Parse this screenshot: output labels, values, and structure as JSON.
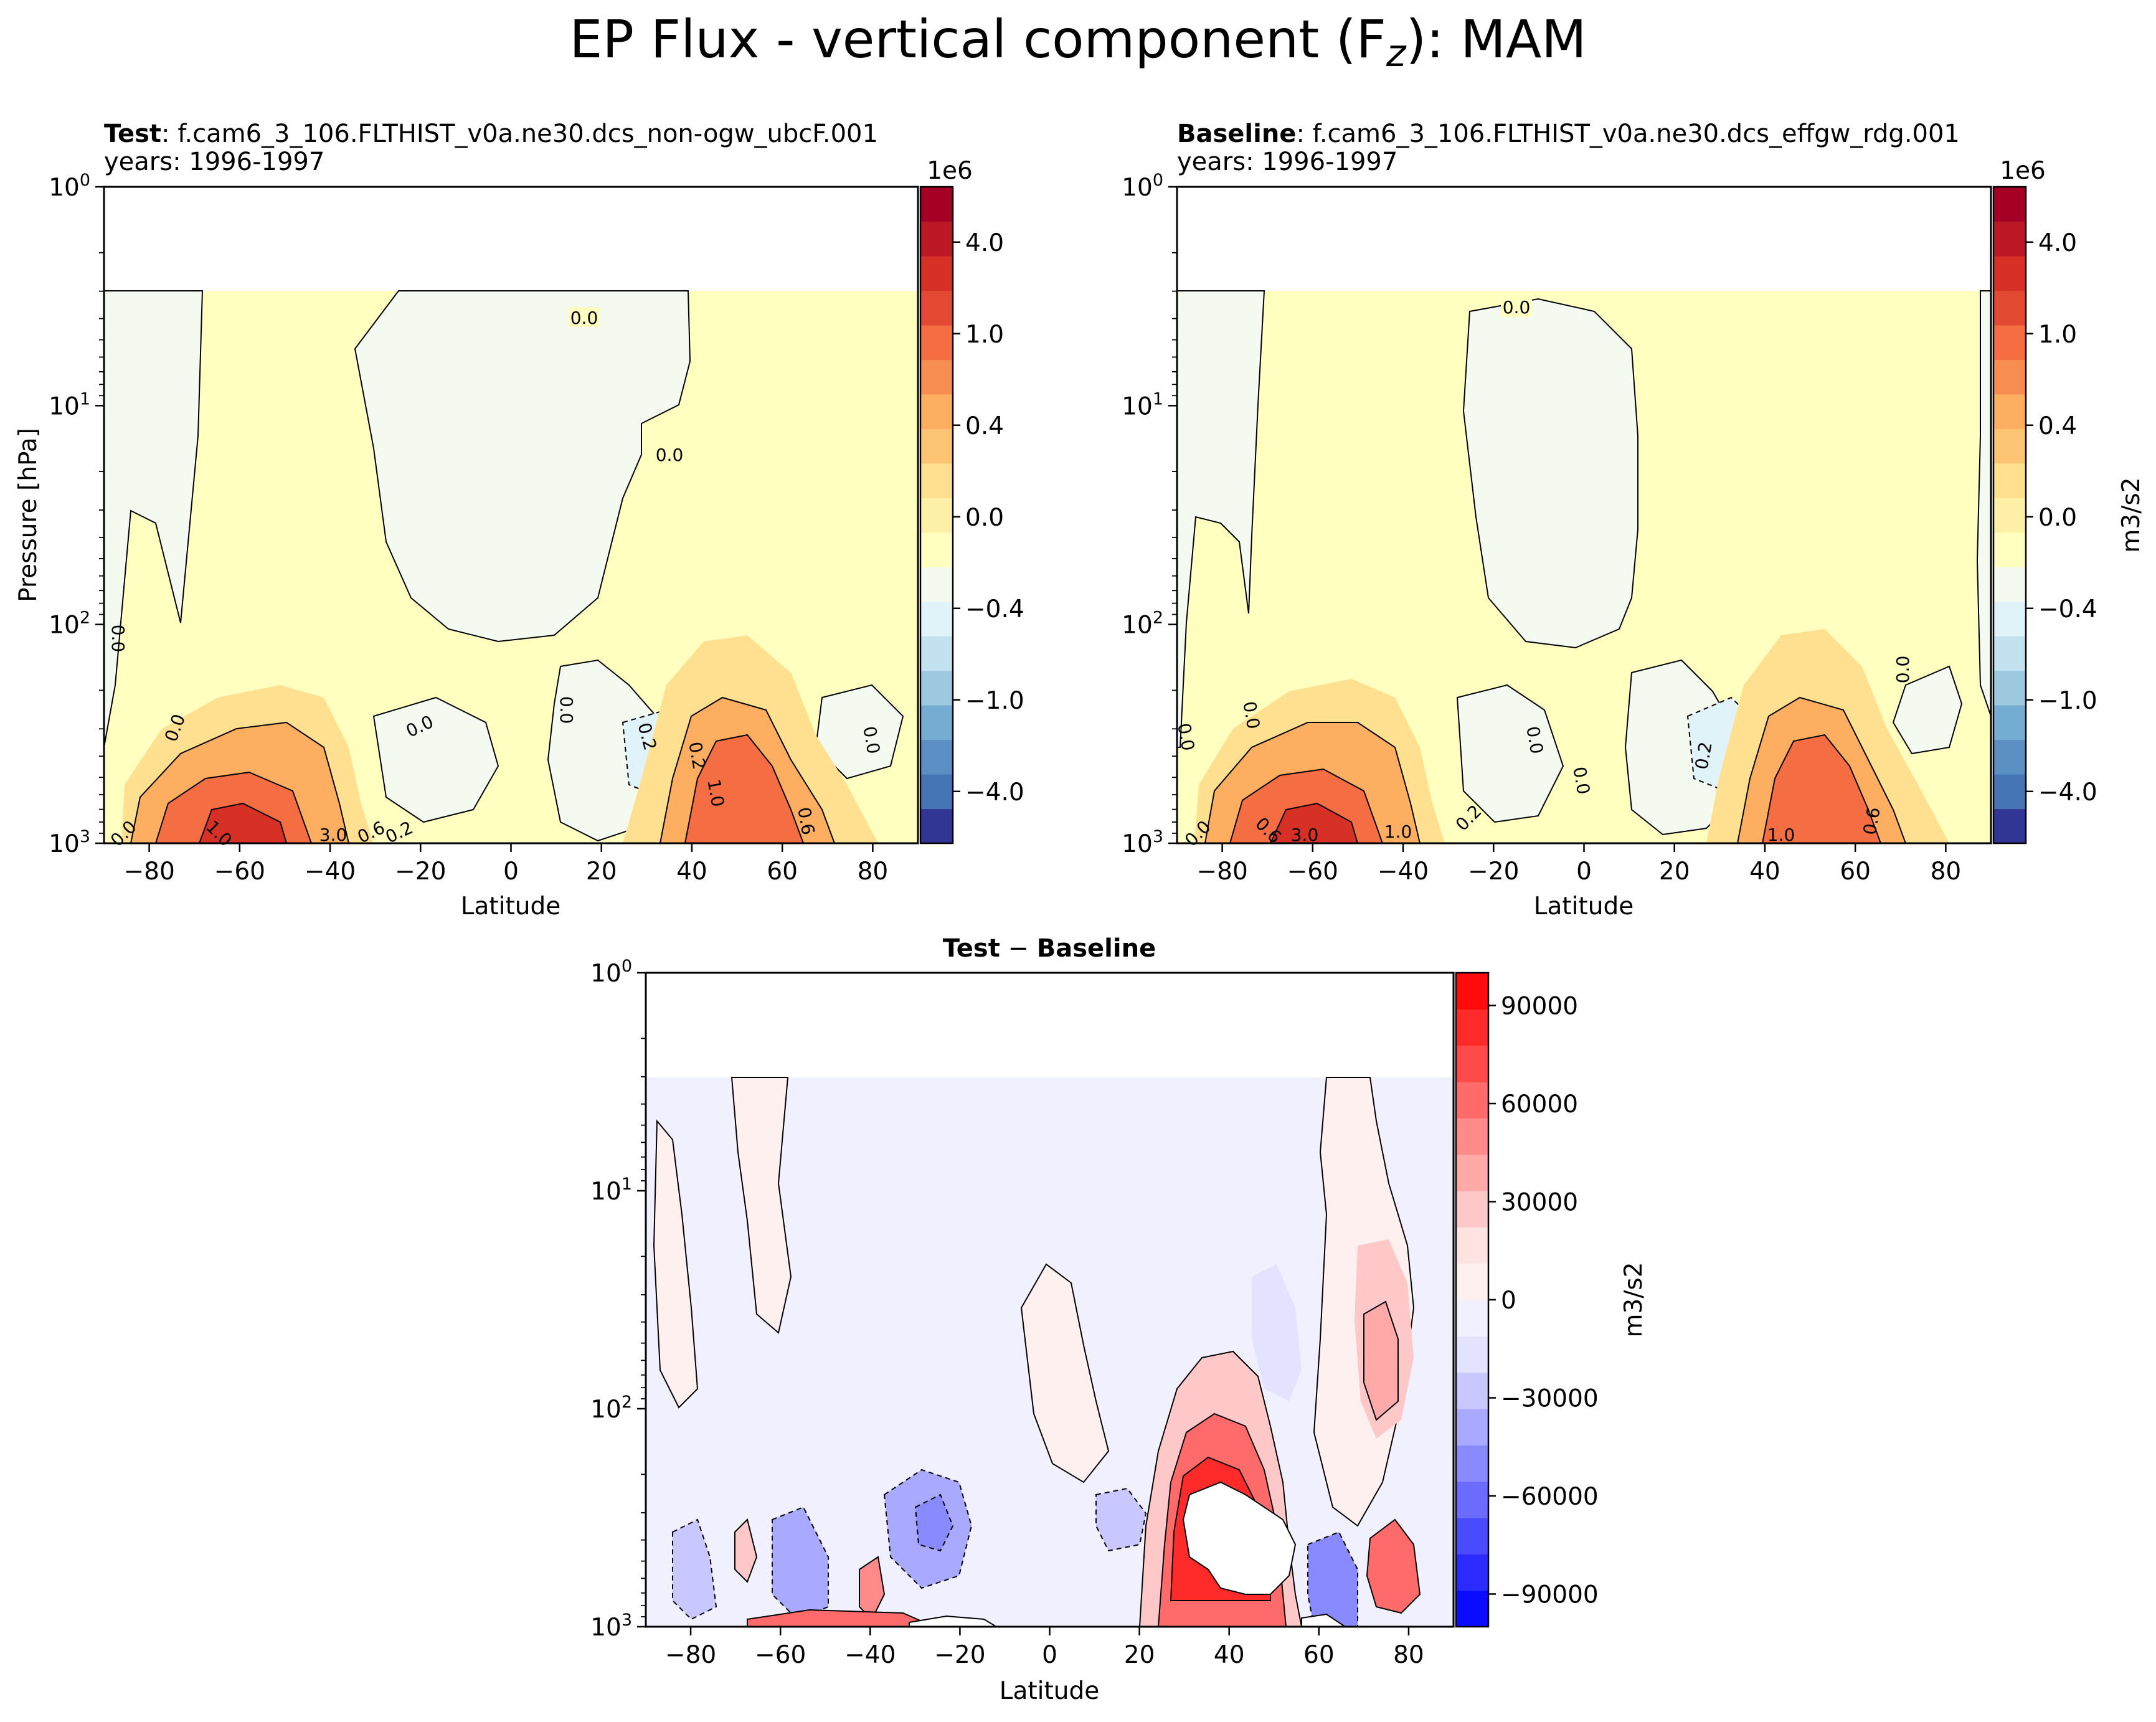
{
  "figure": {
    "title": "EP Flux - vertical component (F",
    "title_sub": "z",
    "title_tail": "): MAM"
  },
  "colors": {
    "rdylbu": [
      "#313695",
      "#4575b4",
      "#5b8ec2",
      "#74add1",
      "#9cc9e0",
      "#c3e2ef",
      "#e0f3f8",
      "#f4faf0",
      "#ffffbf",
      "#fff0a8",
      "#fee090",
      "#fdc474",
      "#fdae61",
      "#f88d52",
      "#f46d43",
      "#e34933",
      "#d73027",
      "#bd1826",
      "#a50026"
    ],
    "bwr": [
      "#0b0bff",
      "#2b2bff",
      "#4a4aff",
      "#6b6bff",
      "#8a8aff",
      "#a9a9ff",
      "#c8c8ff",
      "#e3e3ff",
      "#f0f0ff",
      "#fff0f0",
      "#ffe3e3",
      "#ffc8c8",
      "#ffa9a9",
      "#ff8a8a",
      "#ff6b6b",
      "#ff4a4a",
      "#ff2b2b",
      "#ff0b0b"
    ]
  },
  "chart_data": [
    {
      "type": "contour",
      "id": "test",
      "title_bold": "Test",
      "title_text": ": f.cam6_3_106.FLTHIST_v0a.ne30.dcs_non-ogw_ubcF.001",
      "years": "years: 1996-1997",
      "xlabel": "Latitude",
      "ylabel": "Pressure [hPa]",
      "xlim": [
        -90,
        90
      ],
      "ylim": [
        1000,
        1
      ],
      "yscale": "log",
      "xticks": [
        -80,
        -60,
        -40,
        -20,
        0,
        20,
        40,
        60,
        80
      ],
      "xticklabels": [
        "−80",
        "−60",
        "−40",
        "−20",
        "0",
        "20",
        "40",
        "60",
        "80"
      ],
      "yticks": [
        {
          "value": 1,
          "base": "10",
          "exp": "0"
        },
        {
          "value": 10,
          "base": "10",
          "exp": "1"
        },
        {
          "value": 100,
          "base": "10",
          "exp": "2"
        },
        {
          "value": 1000,
          "base": "10",
          "exp": "3"
        }
      ],
      "data_top_hpa": 3,
      "colorbar": {
        "label": "",
        "offset_text": "1e6",
        "ticks": [
          4.0,
          1.0,
          0.4,
          0.0,
          -0.4,
          -1.0,
          -4.0
        ],
        "ticklabels": [
          "4.0",
          "1.0",
          "0.4",
          "0.0",
          "−0.4",
          "−1.0",
          "−4.0"
        ]
      },
      "features": [
        {
          "lat": -57,
          "p": 850,
          "value": 3.0
        },
        {
          "lat": -48,
          "p": 650,
          "value": 1.0
        },
        {
          "lat": 48,
          "p": 700,
          "value": 2.0
        },
        {
          "lat": 50,
          "p": 450,
          "value": 1.0
        },
        {
          "lat": 30,
          "p": 380,
          "value": -0.2
        },
        {
          "lat": 0,
          "p": 80,
          "value": 0.0
        }
      ],
      "contour_labels": [
        {
          "text": "0.0",
          "lat": 17,
          "p": 4.5
        },
        {
          "text": "0.0",
          "lat": 35,
          "p": 16
        },
        {
          "text": "0.0",
          "lat": -87,
          "p": 120
        },
        {
          "text": "0.0",
          "lat": -72,
          "p": 320
        },
        {
          "text": "0.0",
          "lat": -20,
          "p": 330
        },
        {
          "text": "0.0",
          "lat": 12,
          "p": 290
        },
        {
          "text": "0.2",
          "lat": 29,
          "p": 380
        },
        {
          "text": "0.2",
          "lat": 39,
          "p": 450
        },
        {
          "text": "1.0",
          "lat": 44,
          "p": 600
        },
        {
          "text": "0.0",
          "lat": 77,
          "p": 360
        },
        {
          "text": "0.6",
          "lat": 64,
          "p": 830
        },
        {
          "text": "1.0",
          "lat": -67,
          "p": 950
        },
        {
          "text": "3.0",
          "lat": -40,
          "p": 980
        },
        {
          "text": "0.6",
          "lat": -36,
          "p": 960
        },
        {
          "text": "0.2",
          "lat": -24,
          "p": 970
        },
        {
          "text": "0.0",
          "lat": -86,
          "p": 950
        }
      ]
    },
    {
      "type": "contour",
      "id": "baseline",
      "title_bold": "Baseline",
      "title_text": ": f.cam6_3_106.FLTHIST_v0a.ne30.dcs_effgw_rdg.001",
      "years": "years: 1996-1997",
      "xlabel": "Latitude",
      "ylabel": "",
      "xlim": [
        -90,
        90
      ],
      "ylim": [
        1000,
        1
      ],
      "yscale": "log",
      "xticks": [
        -80,
        -60,
        -40,
        -20,
        0,
        20,
        40,
        60,
        80
      ],
      "xticklabels": [
        "−80",
        "−60",
        "−40",
        "−20",
        "0",
        "20",
        "40",
        "60",
        "80"
      ],
      "yticks": [
        {
          "value": 1,
          "base": "10",
          "exp": "0"
        },
        {
          "value": 10,
          "base": "10",
          "exp": "1"
        },
        {
          "value": 100,
          "base": "10",
          "exp": "2"
        },
        {
          "value": 1000,
          "base": "10",
          "exp": "3"
        }
      ],
      "data_top_hpa": 3,
      "colorbar": {
        "label": "m3/s2",
        "offset_text": "1e6",
        "ticks": [
          4.0,
          1.0,
          0.4,
          0.0,
          -0.4,
          -1.0,
          -4.0
        ],
        "ticklabels": [
          "4.0",
          "1.0",
          "0.4",
          "0.0",
          "−0.4",
          "−1.0",
          "−4.0"
        ]
      },
      "features": [
        {
          "lat": -57,
          "p": 850,
          "value": 3.0
        },
        {
          "lat": 48,
          "p": 700,
          "value": 2.0
        },
        {
          "lat": 30,
          "p": 380,
          "value": -0.2
        },
        {
          "lat": 0,
          "p": 60,
          "value": 0.0
        }
      ],
      "contour_labels": [
        {
          "text": "0.0",
          "lat": -15,
          "p": 4.5
        },
        {
          "text": "0.0",
          "lat": -88,
          "p": 380
        },
        {
          "text": "0.0",
          "lat": -74,
          "p": 320
        },
        {
          "text": "0.0",
          "lat": 11,
          "p": 390
        },
        {
          "text": "0.0",
          "lat": 0,
          "p": 600
        },
        {
          "text": "0.2",
          "lat": 28,
          "p": 420
        },
        {
          "text": "0.0",
          "lat": 72,
          "p": 180
        },
        {
          "text": "0.6",
          "lat": 65,
          "p": 840
        },
        {
          "text": "1.0",
          "lat": 45,
          "p": 980
        },
        {
          "text": "0.6",
          "lat": -70,
          "p": 940
        },
        {
          "text": "3.0",
          "lat": -62,
          "p": 980
        },
        {
          "text": "1.0",
          "lat": -42,
          "p": 970
        },
        {
          "text": "0.2",
          "lat": -21,
          "p": 940
        },
        {
          "text": "0.0",
          "lat": -87,
          "p": 960
        }
      ]
    },
    {
      "type": "contour",
      "id": "diff",
      "title_bold_a": "Test",
      "title_sep": " − ",
      "title_bold_b": "Baseline",
      "xlabel": "Latitude",
      "ylabel": "",
      "xlim": [
        -90,
        90
      ],
      "ylim": [
        1000,
        1
      ],
      "yscale": "log",
      "xticks": [
        -80,
        -60,
        -40,
        -20,
        0,
        20,
        40,
        60,
        80
      ],
      "xticklabels": [
        "−80",
        "−60",
        "−40",
        "−20",
        "0",
        "20",
        "40",
        "60",
        "80"
      ],
      "yticks": [
        {
          "value": 1,
          "base": "10",
          "exp": "0"
        },
        {
          "value": 10,
          "base": "10",
          "exp": "1"
        },
        {
          "value": 100,
          "base": "10",
          "exp": "2"
        },
        {
          "value": 1000,
          "base": "10",
          "exp": "3"
        }
      ],
      "data_top_hpa": 3,
      "colorbar": {
        "label": "m3/s2",
        "offset_text": "",
        "ticks": [
          90000,
          60000,
          30000,
          0,
          -30000,
          -60000,
          -90000
        ],
        "ticklabels": [
          "90000",
          "60000",
          "30000",
          "0",
          "−30000",
          "−60000",
          "−90000"
        ]
      },
      "features": [
        {
          "lat": 40,
          "p": 350,
          "value": 100000
        },
        {
          "lat": 78,
          "p": 450,
          "value": 60000
        },
        {
          "lat": 75,
          "p": 60,
          "value": 20000
        },
        {
          "lat": -28,
          "p": 330,
          "value": -50000
        },
        {
          "lat": 63,
          "p": 700,
          "value": -70000
        },
        {
          "lat": 52,
          "p": 80,
          "value": -15000
        }
      ]
    }
  ]
}
